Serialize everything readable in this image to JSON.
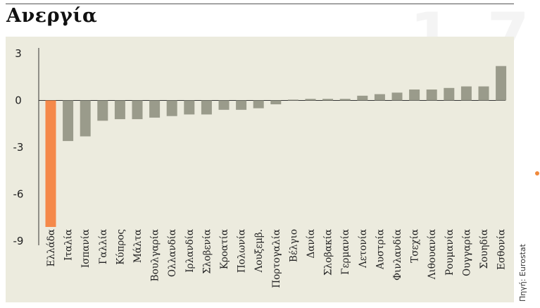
{
  "header": {
    "title": "Ανεργία",
    "watermark": "1 7"
  },
  "source": "Πηγή: Eurostat",
  "chart_data": {
    "type": "bar",
    "categories": [
      "Ελλάδα",
      "Ιταλία",
      "Ισπανία",
      "Γαλλία",
      "Κύπρος",
      "Μάλτα",
      "Βουλγαρία",
      "Ολλανδία",
      "Ιρλανδία",
      "Σλοβενία",
      "Κροατία",
      "Πολωνία",
      "Λουξεμβ.",
      "Πορτογαλία",
      "Βέλγιο",
      "Δανία",
      "Σλοβακία",
      "Γερμανία",
      "Λετονία",
      "Αυστρία",
      "Φινλανδία",
      "Τσεχία",
      "Λιθουανία",
      "Ρουμανία",
      "Ουγγαρία",
      "Σουηδία",
      "Εσθονία"
    ],
    "values": [
      -8.1,
      -2.6,
      -2.3,
      -1.3,
      -1.2,
      -1.2,
      -1.1,
      -1.0,
      -0.9,
      -0.9,
      -0.6,
      -0.6,
      -0.5,
      -0.25,
      0.05,
      0.1,
      0.1,
      0.1,
      0.3,
      0.4,
      0.5,
      0.7,
      0.7,
      0.8,
      0.9,
      0.9,
      2.2
    ],
    "yticks": [
      3,
      0,
      -3,
      -6,
      -9
    ],
    "ylim": [
      -9,
      3
    ],
    "colors": {
      "highlight": "#f5894a",
      "default": "#9a9b8b",
      "axis": "#333333"
    },
    "highlight_index": 0,
    "title": "Ανεργία",
    "xlabel": "",
    "ylabel": ""
  }
}
